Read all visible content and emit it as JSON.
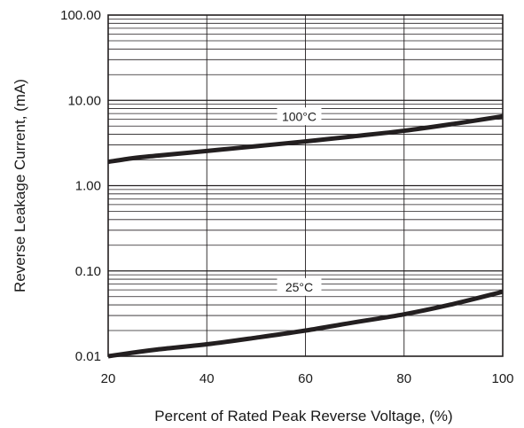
{
  "chart_data": {
    "type": "line",
    "xlabel": "Percent of Rated Peak Reverse Voltage, (%)",
    "ylabel": "Reverse Leakage Current, (mA)",
    "xlim": [
      20,
      100
    ],
    "ylim": [
      0.01,
      100
    ],
    "yscale": "log",
    "grid": true,
    "x_ticks": [
      20,
      40,
      60,
      80,
      100
    ],
    "x_tick_labels": [
      "20",
      "40",
      "60",
      "80",
      "100"
    ],
    "y_ticks": [
      0.01,
      0.1,
      1,
      10,
      100
    ],
    "y_tick_labels": [
      "0.01",
      "0.10",
      "1.00",
      "10.00",
      "100.00"
    ],
    "series": [
      {
        "label": "100°C",
        "label_at": {
          "x": 60,
          "y": 6.5
        },
        "x": [
          20,
          25,
          30,
          40,
          50,
          60,
          70,
          80,
          90,
          100
        ],
        "y": [
          1.9,
          2.1,
          2.25,
          2.55,
          2.9,
          3.3,
          3.8,
          4.4,
          5.3,
          6.5
        ]
      },
      {
        "label": "25°C",
        "label_at": {
          "x": 60,
          "y": 0.065
        },
        "x": [
          20,
          25,
          30,
          40,
          50,
          60,
          70,
          80,
          90,
          100
        ],
        "y": [
          0.01,
          0.011,
          0.012,
          0.0138,
          0.0165,
          0.02,
          0.025,
          0.031,
          0.041,
          0.057
        ]
      }
    ],
    "colors": {
      "line": "#231f20",
      "grid": "#231f20",
      "background": "#ffffff"
    }
  }
}
